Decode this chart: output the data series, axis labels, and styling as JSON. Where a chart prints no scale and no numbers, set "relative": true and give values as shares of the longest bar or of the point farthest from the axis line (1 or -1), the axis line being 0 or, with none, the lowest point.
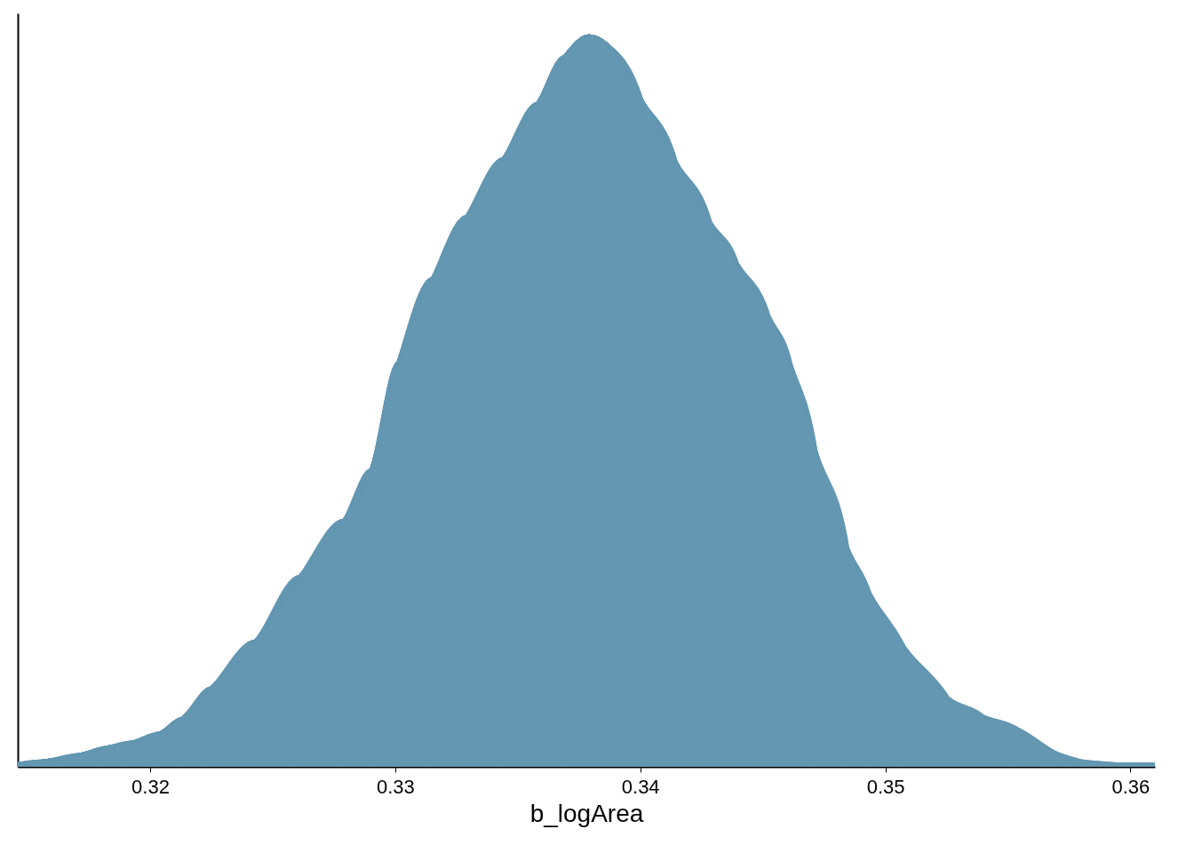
{
  "chart_data": {
    "type": "area",
    "xlabel": "b_logArea",
    "relative": true,
    "grid": false,
    "xlim": [
      0.3146,
      0.361
    ],
    "xticks": [
      0.32,
      0.33,
      0.34,
      0.35,
      0.36
    ],
    "x": [
      0.3146,
      0.3157,
      0.3172,
      0.3183,
      0.3193,
      0.3204,
      0.3213,
      0.3225,
      0.3243,
      0.3261,
      0.3279,
      0.329,
      0.3301,
      0.3315,
      0.3329,
      0.3344,
      0.3358,
      0.3369,
      0.3379,
      0.3386,
      0.3401,
      0.3415,
      0.3429,
      0.344,
      0.3453,
      0.3462,
      0.3472,
      0.3485,
      0.3494,
      0.3508,
      0.3526,
      0.354,
      0.3555,
      0.3569,
      0.358,
      0.3594,
      0.361
    ],
    "series": [
      {
        "color": "#6497b1",
        "values": [
          0.005,
          0.009,
          0.018,
          0.028,
          0.035,
          0.047,
          0.067,
          0.109,
          0.173,
          0.261,
          0.338,
          0.407,
          0.553,
          0.668,
          0.753,
          0.832,
          0.908,
          0.972,
          1.0,
          0.99,
          0.911,
          0.826,
          0.744,
          0.687,
          0.614,
          0.547,
          0.431,
          0.298,
          0.237,
          0.164,
          0.094,
          0.07,
          0.051,
          0.021,
          0.009,
          0.005,
          0.005
        ]
      }
    ]
  }
}
